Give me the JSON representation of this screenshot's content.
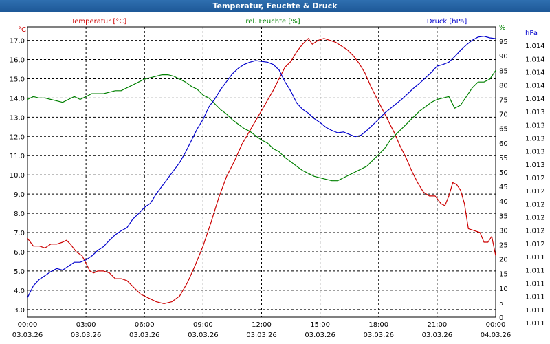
{
  "title": "Temperatur, Feuchte & Druck",
  "chart_data": {
    "type": "line",
    "title": "Temperatur, Feuchte & Druck",
    "x_ticks": [
      {
        "time": "00:00",
        "date": "03.03.26"
      },
      {
        "time": "03:00",
        "date": "03.03.26"
      },
      {
        "time": "06:00",
        "date": "03.03.26"
      },
      {
        "time": "09:00",
        "date": "03.03.26"
      },
      {
        "time": "12:00",
        "date": "03.03.26"
      },
      {
        "time": "15:00",
        "date": "03.03.26"
      },
      {
        "time": "18:00",
        "date": "03.03.26"
      },
      {
        "time": "21:00",
        "date": "03.03.26"
      },
      {
        "time": "00:00",
        "date": "04.03.26"
      }
    ],
    "xlim": [
      0,
      24
    ],
    "axes": {
      "temperature": {
        "label": "Temperatur [°C]",
        "unit": "°C",
        "ylim": [
          2.6,
          17.7
        ],
        "ticks": [
          "3.0",
          "4.0",
          "5.0",
          "6.0",
          "7.0",
          "8.0",
          "9.0",
          "10.0",
          "11.0",
          "12.0",
          "13.0",
          "14.0",
          "15.0",
          "16.0",
          "17.0"
        ]
      },
      "humidity": {
        "label": "rel. Feuchte [%]",
        "unit": "%",
        "ylim": [
          0,
          100
        ],
        "ticks": [
          "0",
          "5",
          "10",
          "15",
          "20",
          "25",
          "30",
          "35",
          "40",
          "45",
          "50",
          "55",
          "60",
          "65",
          "70",
          "75",
          "80",
          "85",
          "90",
          "95",
          "%"
        ]
      },
      "pressure": {
        "label": "Druck [hPa]",
        "unit": "hPa",
        "ylim": [
          1010.6,
          1014.3
        ],
        "ticks": [
          "1.011",
          "1.011",
          "1.011",
          "1.011",
          "1.011",
          "1.011",
          "1.012",
          "1.012",
          "1.012",
          "1.012",
          "1.012",
          "1.012",
          "1.013",
          "1.013",
          "1.013",
          "1.013",
          "1.013",
          "1.014",
          "1.014",
          "1.014",
          "1.014",
          "1.014",
          "hPa"
        ]
      }
    },
    "series": [
      {
        "name": "Temperatur [°C]",
        "axis": "temperature",
        "color": "#cc0000",
        "points": [
          [
            0.0,
            6.7
          ],
          [
            0.3,
            6.3
          ],
          [
            0.6,
            6.3
          ],
          [
            0.9,
            6.2
          ],
          [
            1.2,
            6.4
          ],
          [
            1.5,
            6.4
          ],
          [
            1.8,
            6.5
          ],
          [
            2.0,
            6.6
          ],
          [
            2.2,
            6.4
          ],
          [
            2.5,
            6.0
          ],
          [
            2.8,
            5.8
          ],
          [
            3.0,
            5.4
          ],
          [
            3.2,
            5.0
          ],
          [
            3.4,
            4.9
          ],
          [
            3.6,
            5.0
          ],
          [
            3.9,
            5.0
          ],
          [
            4.2,
            4.9
          ],
          [
            4.5,
            4.6
          ],
          [
            4.8,
            4.6
          ],
          [
            5.1,
            4.5
          ],
          [
            5.4,
            4.2
          ],
          [
            5.8,
            3.8
          ],
          [
            6.2,
            3.6
          ],
          [
            6.6,
            3.4
          ],
          [
            7.0,
            3.3
          ],
          [
            7.4,
            3.4
          ],
          [
            7.8,
            3.7
          ],
          [
            8.2,
            4.4
          ],
          [
            8.6,
            5.3
          ],
          [
            9.0,
            6.3
          ],
          [
            9.4,
            7.5
          ],
          [
            9.8,
            8.8
          ],
          [
            10.2,
            9.9
          ],
          [
            10.6,
            10.7
          ],
          [
            11.0,
            11.6
          ],
          [
            11.4,
            12.3
          ],
          [
            11.8,
            13.0
          ],
          [
            12.2,
            13.7
          ],
          [
            12.6,
            14.4
          ],
          [
            12.9,
            15.0
          ],
          [
            13.2,
            15.6
          ],
          [
            13.5,
            15.9
          ],
          [
            13.8,
            16.4
          ],
          [
            14.1,
            16.8
          ],
          [
            14.4,
            17.1
          ],
          [
            14.6,
            16.8
          ],
          [
            14.9,
            17.0
          ],
          [
            15.2,
            17.1
          ],
          [
            15.5,
            17.0
          ],
          [
            15.8,
            16.9
          ],
          [
            16.1,
            16.7
          ],
          [
            16.4,
            16.5
          ],
          [
            16.7,
            16.2
          ],
          [
            17.0,
            15.8
          ],
          [
            17.3,
            15.3
          ],
          [
            17.6,
            14.6
          ],
          [
            17.9,
            14.0
          ],
          [
            18.2,
            13.4
          ],
          [
            18.5,
            12.8
          ],
          [
            18.8,
            12.2
          ],
          [
            19.1,
            11.5
          ],
          [
            19.4,
            10.9
          ],
          [
            19.7,
            10.2
          ],
          [
            20.0,
            9.6
          ],
          [
            20.3,
            9.1
          ],
          [
            20.6,
            8.9
          ],
          [
            20.9,
            8.9
          ],
          [
            21.2,
            8.5
          ],
          [
            21.4,
            8.4
          ],
          [
            21.6,
            8.9
          ],
          [
            21.8,
            9.6
          ],
          [
            22.0,
            9.5
          ],
          [
            22.2,
            9.2
          ],
          [
            22.4,
            8.5
          ],
          [
            22.6,
            7.2
          ],
          [
            22.9,
            7.1
          ],
          [
            23.2,
            7.0
          ],
          [
            23.4,
            6.5
          ],
          [
            23.6,
            6.5
          ],
          [
            23.8,
            6.8
          ],
          [
            24.0,
            5.8
          ]
        ]
      },
      {
        "name": "rel. Feuchte [%]",
        "axis": "humidity",
        "color": "#008000",
        "points": [
          [
            0.0,
            75
          ],
          [
            0.3,
            76
          ],
          [
            0.6,
            75.5
          ],
          [
            0.9,
            75.5
          ],
          [
            1.2,
            75
          ],
          [
            1.5,
            74.5
          ],
          [
            1.8,
            74
          ],
          [
            2.1,
            75
          ],
          [
            2.4,
            76
          ],
          [
            2.7,
            75
          ],
          [
            3.0,
            76
          ],
          [
            3.3,
            77
          ],
          [
            3.6,
            77
          ],
          [
            3.9,
            77
          ],
          [
            4.2,
            77.5
          ],
          [
            4.5,
            78
          ],
          [
            4.8,
            78
          ],
          [
            5.1,
            79
          ],
          [
            5.4,
            80
          ],
          [
            5.7,
            81
          ],
          [
            6.0,
            82
          ],
          [
            6.3,
            82.5
          ],
          [
            6.6,
            83
          ],
          [
            6.9,
            83.5
          ],
          [
            7.2,
            83.5
          ],
          [
            7.5,
            83
          ],
          [
            7.8,
            82
          ],
          [
            8.1,
            81
          ],
          [
            8.4,
            79.5
          ],
          [
            8.7,
            78.5
          ],
          [
            9.0,
            76.5
          ],
          [
            9.3,
            75.5
          ],
          [
            9.6,
            73.5
          ],
          [
            9.9,
            71.5
          ],
          [
            10.2,
            70
          ],
          [
            10.5,
            68
          ],
          [
            10.8,
            66.5
          ],
          [
            11.1,
            65
          ],
          [
            11.4,
            64
          ],
          [
            11.7,
            62.5
          ],
          [
            12.0,
            61
          ],
          [
            12.3,
            60
          ],
          [
            12.6,
            58
          ],
          [
            12.9,
            57
          ],
          [
            13.2,
            55
          ],
          [
            13.5,
            53.5
          ],
          [
            13.8,
            52
          ],
          [
            14.1,
            50.5
          ],
          [
            14.4,
            49.5
          ],
          [
            14.7,
            48.5
          ],
          [
            15.0,
            48
          ],
          [
            15.3,
            47.5
          ],
          [
            15.6,
            47
          ],
          [
            15.9,
            47
          ],
          [
            16.2,
            48
          ],
          [
            16.5,
            49
          ],
          [
            16.8,
            50
          ],
          [
            17.1,
            51
          ],
          [
            17.4,
            52
          ],
          [
            17.7,
            54
          ],
          [
            18.0,
            56
          ],
          [
            18.3,
            58
          ],
          [
            18.6,
            61
          ],
          [
            18.9,
            63
          ],
          [
            19.2,
            65
          ],
          [
            19.5,
            67
          ],
          [
            19.8,
            69
          ],
          [
            20.1,
            71
          ],
          [
            20.4,
            72.5
          ],
          [
            20.7,
            74
          ],
          [
            21.0,
            75
          ],
          [
            21.3,
            75.5
          ],
          [
            21.6,
            76
          ],
          [
            21.9,
            72
          ],
          [
            22.2,
            73
          ],
          [
            22.5,
            76
          ],
          [
            22.8,
            79
          ],
          [
            23.1,
            81
          ],
          [
            23.4,
            81
          ],
          [
            23.7,
            82
          ],
          [
            24.0,
            85
          ]
        ]
      },
      {
        "name": "Druck [hPa]",
        "axis": "pressure",
        "color": "#0000cc",
        "points": [
          [
            0.0,
            1010.85
          ],
          [
            0.3,
            1011.0
          ],
          [
            0.6,
            1011.08
          ],
          [
            0.9,
            1011.13
          ],
          [
            1.2,
            1011.18
          ],
          [
            1.5,
            1011.22
          ],
          [
            1.8,
            1011.2
          ],
          [
            2.1,
            1011.25
          ],
          [
            2.4,
            1011.3
          ],
          [
            2.7,
            1011.3
          ],
          [
            3.0,
            1011.33
          ],
          [
            3.3,
            1011.38
          ],
          [
            3.6,
            1011.45
          ],
          [
            3.9,
            1011.5
          ],
          [
            4.2,
            1011.58
          ],
          [
            4.5,
            1011.65
          ],
          [
            4.8,
            1011.7
          ],
          [
            5.1,
            1011.74
          ],
          [
            5.4,
            1011.85
          ],
          [
            5.7,
            1011.92
          ],
          [
            6.0,
            1012.0
          ],
          [
            6.3,
            1012.05
          ],
          [
            6.6,
            1012.17
          ],
          [
            6.9,
            1012.27
          ],
          [
            7.2,
            1012.37
          ],
          [
            7.5,
            1012.47
          ],
          [
            7.8,
            1012.57
          ],
          [
            8.1,
            1012.7
          ],
          [
            8.4,
            1012.85
          ],
          [
            8.7,
            1013.0
          ],
          [
            9.0,
            1013.12
          ],
          [
            9.3,
            1013.28
          ],
          [
            9.6,
            1013.38
          ],
          [
            9.9,
            1013.5
          ],
          [
            10.2,
            1013.6
          ],
          [
            10.5,
            1013.7
          ],
          [
            10.8,
            1013.77
          ],
          [
            11.1,
            1013.82
          ],
          [
            11.4,
            1013.85
          ],
          [
            11.7,
            1013.87
          ],
          [
            12.0,
            1013.86
          ],
          [
            12.3,
            1013.85
          ],
          [
            12.6,
            1013.82
          ],
          [
            12.9,
            1013.75
          ],
          [
            13.2,
            1013.6
          ],
          [
            13.5,
            1013.48
          ],
          [
            13.8,
            1013.33
          ],
          [
            14.1,
            1013.25
          ],
          [
            14.4,
            1013.2
          ],
          [
            14.7,
            1013.13
          ],
          [
            15.0,
            1013.08
          ],
          [
            15.3,
            1013.02
          ],
          [
            15.6,
            1012.98
          ],
          [
            15.9,
            1012.95
          ],
          [
            16.2,
            1012.96
          ],
          [
            16.5,
            1012.93
          ],
          [
            16.8,
            1012.9
          ],
          [
            17.1,
            1012.92
          ],
          [
            17.4,
            1012.98
          ],
          [
            17.7,
            1013.05
          ],
          [
            18.0,
            1013.12
          ],
          [
            18.3,
            1013.2
          ],
          [
            18.6,
            1013.26
          ],
          [
            18.9,
            1013.32
          ],
          [
            19.2,
            1013.38
          ],
          [
            19.5,
            1013.45
          ],
          [
            19.8,
            1013.52
          ],
          [
            20.1,
            1013.58
          ],
          [
            20.4,
            1013.65
          ],
          [
            20.7,
            1013.72
          ],
          [
            21.0,
            1013.8
          ],
          [
            21.3,
            1013.82
          ],
          [
            21.6,
            1013.85
          ],
          [
            21.9,
            1013.92
          ],
          [
            22.2,
            1014.0
          ],
          [
            22.5,
            1014.07
          ],
          [
            22.8,
            1014.13
          ],
          [
            23.1,
            1014.17
          ],
          [
            23.4,
            1014.18
          ],
          [
            23.7,
            1014.16
          ],
          [
            24.0,
            1014.15
          ]
        ]
      }
    ]
  }
}
